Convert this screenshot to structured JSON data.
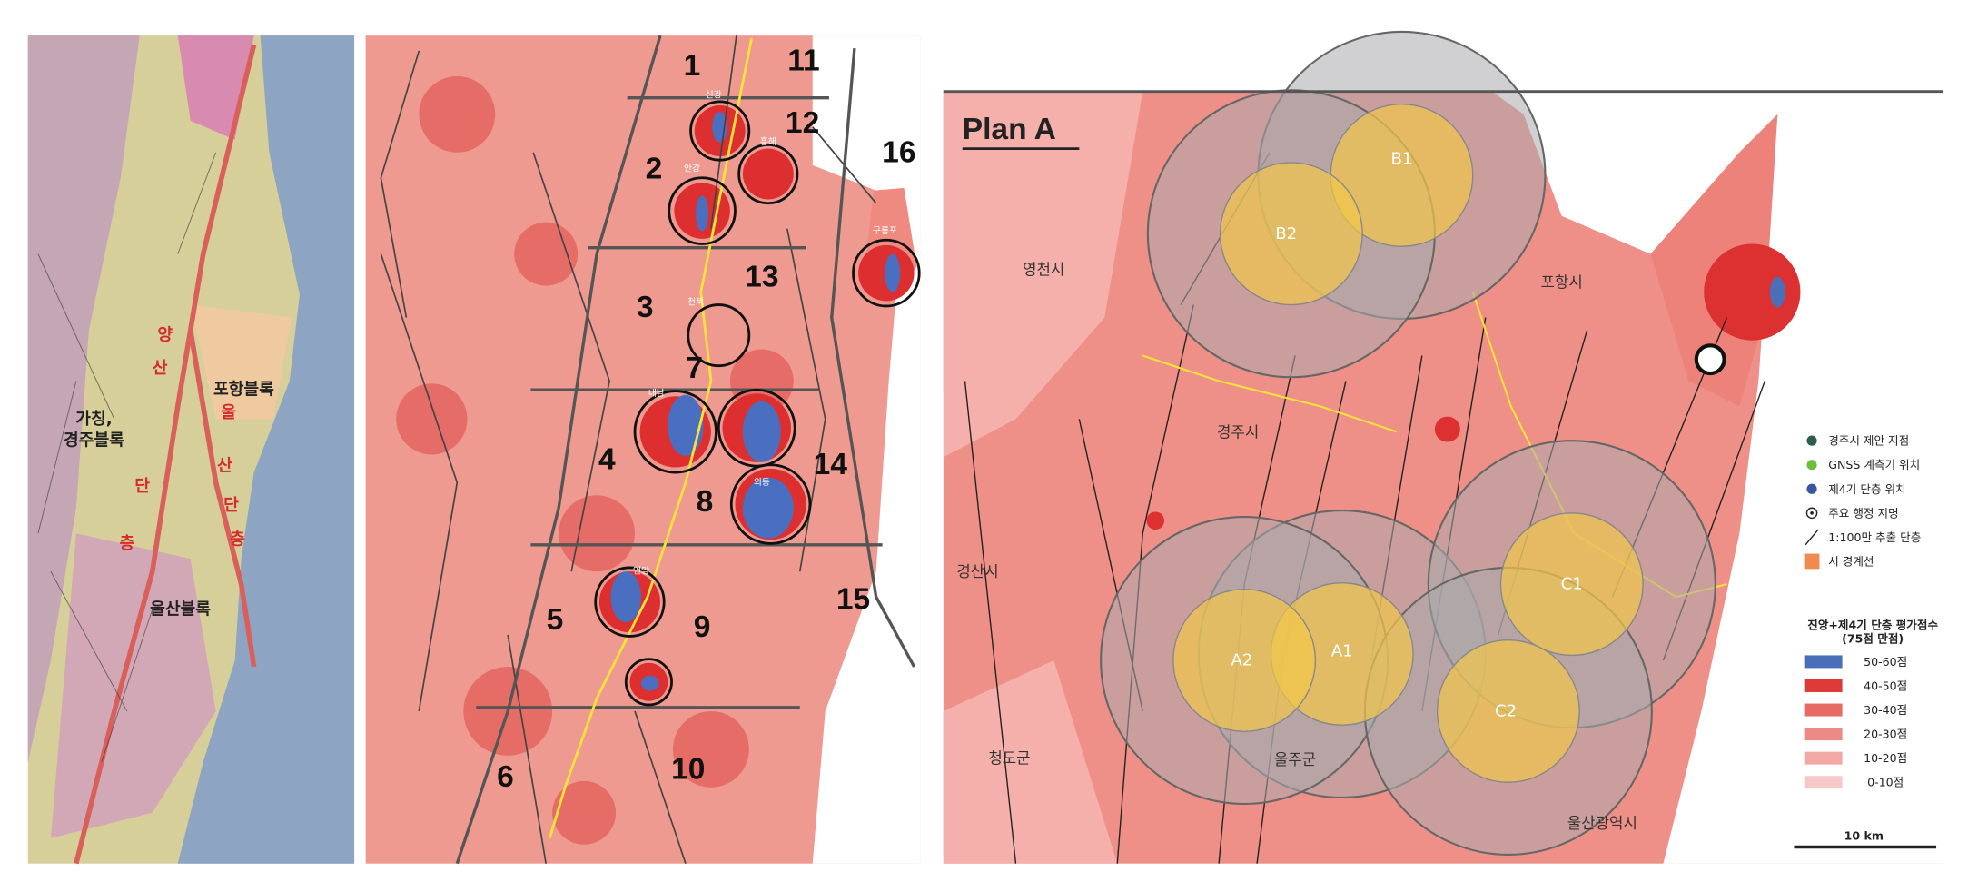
{
  "panel1": {
    "blocks": [
      [
        "가칭,",
        "경주블록"
      ],
      [
        "포항블록"
      ],
      [
        "울산블록"
      ]
    ],
    "fault_west": [
      "양",
      "산",
      "단",
      "층"
    ],
    "fault_east": [
      "울",
      "산",
      "단",
      "층"
    ]
  },
  "panel2": {
    "zones": [
      "1",
      "2",
      "3",
      "4",
      "5",
      "6",
      "7",
      "8",
      "9",
      "10",
      "11",
      "12",
      "13",
      "14",
      "15",
      "16"
    ],
    "places": [
      "신광",
      "흥해",
      "안강",
      "구룡포",
      "천북",
      "내남",
      "외동",
      "언양"
    ]
  },
  "panel3": {
    "title": "Plan A",
    "circles": [
      "B1",
      "B2",
      "A1",
      "A2",
      "C1",
      "C2"
    ],
    "cities": [
      "영천시",
      "포항시",
      "경주시",
      "경산시",
      "청도군",
      "울주군",
      "울산광역시"
    ],
    "legend_symbols": [
      {
        "label": "경주시 제안 지점",
        "color": "#2e5e4e"
      },
      {
        "label": "GNSS 계측기 위치",
        "color": "#6cbf3c"
      },
      {
        "label": "제4기 단층 위치",
        "color": "#3a55a0"
      },
      {
        "label": "주요 행정 지명",
        "color": "#222"
      },
      {
        "label": "1:100만 추출 단층",
        "color": "#222"
      },
      {
        "label": "시 경계선",
        "color": "#f08a50"
      }
    ],
    "legend_title": [
      "진앙+제4기 단층 평가점수",
      "(75점 만점)"
    ],
    "legend_scale": [
      {
        "label": "50-60점",
        "color": "#4a6fb8"
      },
      {
        "label": "40-50점",
        "color": "#dd3a3a"
      },
      {
        "label": "30-40점",
        "color": "#e86a65"
      },
      {
        "label": "20-30점",
        "color": "#ee8a85"
      },
      {
        "label": "10-20점",
        "color": "#f2a8a5"
      },
      {
        "label": "0-10점",
        "color": "#f7c8c8"
      }
    ],
    "scale_bar": "10 km"
  }
}
